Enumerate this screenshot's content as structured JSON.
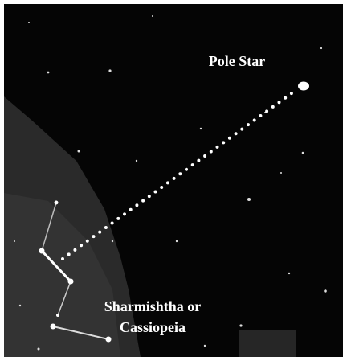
{
  "labels": {
    "pole_star": "Pole Star",
    "constellation": [
      "Sharmishtha or",
      "Cassiopeia"
    ]
  }
}
